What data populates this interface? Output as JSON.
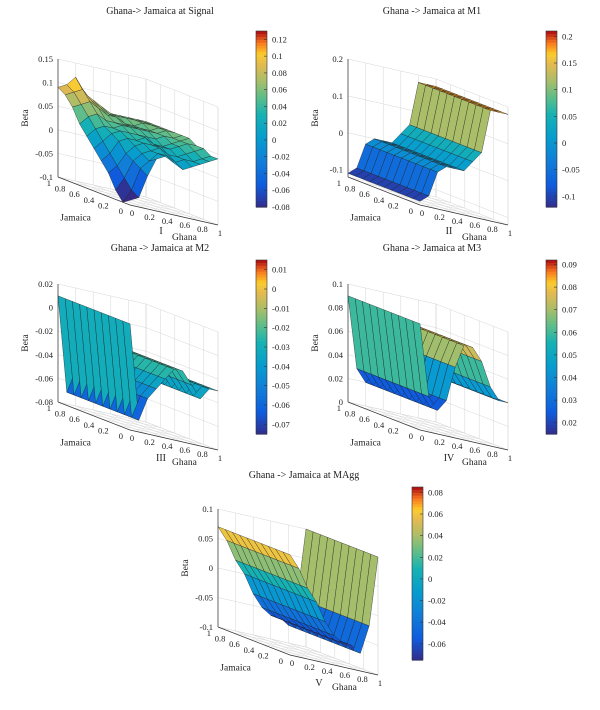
{
  "chart_data": [
    {
      "type": "surface3d",
      "title": "Ghana-> Jamaica at Signal",
      "panel_label": "I",
      "xlabel": "Ghana",
      "ylabel": "Jamaica",
      "zlabel": "Beta",
      "x_ticks": [
        "0",
        "0.2",
        "0.4",
        "0.6",
        "0.8",
        "1"
      ],
      "y_ticks": [
        "0",
        "0.2",
        "0.4",
        "0.6",
        "0.8",
        "1"
      ],
      "z_ticks": [
        "-0.1",
        "-0.05",
        "0",
        "0.05",
        "0.1",
        "0.15"
      ],
      "zlim": [
        -0.1,
        0.15
      ],
      "colorbar_ticks": [
        "0.12",
        "0.1",
        "0.08",
        "0.06",
        "0.04",
        "0.02",
        "0",
        "-0.02",
        "-0.04",
        "-0.06",
        "-0.08"
      ],
      "clim": [
        -0.08,
        0.13
      ],
      "grid": {
        "x": [
          0,
          0.1,
          0.2,
          0.3,
          0.4,
          0.5,
          0.6,
          0.7,
          0.8,
          0.9,
          1
        ],
        "y": [
          0,
          0.1,
          0.2,
          0.3,
          0.4,
          0.5,
          0.6,
          0.7,
          0.8,
          0.9,
          1
        ],
        "z": [
          [
            -0.09,
            -0.08,
            -0.03,
            0.01,
            0.02,
            0.01,
            0.0,
            0.01,
            0.02,
            0.03,
            0.04
          ],
          [
            -0.1,
            -0.07,
            -0.02,
            0.0,
            0.02,
            0.02,
            0.01,
            0.02,
            0.02,
            0.03,
            0.04
          ],
          [
            -0.08,
            -0.05,
            -0.01,
            0.01,
            0.02,
            0.03,
            0.02,
            0.02,
            0.03,
            0.04,
            0.05
          ],
          [
            -0.05,
            -0.03,
            0.0,
            0.02,
            0.03,
            0.03,
            0.03,
            0.03,
            0.04,
            0.05,
            0.05
          ],
          [
            -0.03,
            -0.01,
            0.02,
            0.03,
            0.03,
            0.04,
            0.03,
            0.03,
            0.04,
            0.05,
            0.06
          ],
          [
            -0.01,
            0.01,
            0.03,
            0.04,
            0.04,
            0.04,
            0.04,
            0.04,
            0.05,
            0.05,
            0.06
          ],
          [
            0.01,
            0.03,
            0.04,
            0.04,
            0.05,
            0.05,
            0.05,
            0.05,
            0.05,
            0.06,
            0.06
          ],
          [
            0.03,
            0.05,
            0.06,
            0.05,
            0.05,
            0.05,
            0.05,
            0.05,
            0.05,
            0.06,
            0.06
          ],
          [
            0.06,
            0.07,
            0.08,
            0.07,
            0.06,
            0.06,
            0.05,
            0.05,
            0.06,
            0.06,
            0.06
          ],
          [
            0.08,
            0.09,
            0.1,
            0.08,
            0.07,
            0.06,
            0.06,
            0.06,
            0.06,
            0.06,
            0.06
          ],
          [
            0.09,
            0.1,
            0.12,
            0.09,
            0.08,
            0.07,
            0.06,
            0.06,
            0.06,
            0.06,
            0.06
          ]
        ]
      }
    },
    {
      "type": "surface3d",
      "title": "Ghana -> Jamaica at M1",
      "panel_label": "II",
      "xlabel": "Ghana",
      "ylabel": "Jamaica",
      "zlabel": "Beta",
      "x_ticks": [
        "0",
        "0.2",
        "0.4",
        "0.6",
        "0.8",
        "1"
      ],
      "y_ticks": [
        "0",
        "0.2",
        "0.4",
        "0.6",
        "0.8",
        "1"
      ],
      "z_ticks": [
        "-0.1",
        "0",
        "0.1",
        "0.2"
      ],
      "zlim": [
        -0.12,
        0.2
      ],
      "colorbar_ticks": [
        "0.2",
        "0.15",
        "0.1",
        "0.05",
        "0",
        "-0.05",
        "-0.1"
      ],
      "clim": [
        -0.12,
        0.21
      ],
      "grid": {
        "x": [
          0,
          0.1,
          0.2,
          0.3,
          0.4,
          0.5,
          0.6,
          0.7,
          0.8,
          0.9,
          1
        ],
        "y": [
          0,
          0.1,
          0.2,
          0.3,
          0.4,
          0.5,
          0.6,
          0.7,
          0.8,
          0.9,
          1
        ],
        "z": [
          [
            -0.11,
            -0.09,
            -0.02,
            0.0,
            0.0,
            0.0,
            0.03,
            0.06,
            0.18,
            0.18,
            0.18
          ],
          [
            -0.11,
            -0.09,
            -0.02,
            0.0,
            0.0,
            0.0,
            0.03,
            0.06,
            0.18,
            0.18,
            0.18
          ],
          [
            -0.11,
            -0.09,
            -0.02,
            0.0,
            0.0,
            0.0,
            0.03,
            0.06,
            0.18,
            0.18,
            0.18
          ],
          [
            -0.11,
            -0.09,
            -0.02,
            0.0,
            0.0,
            0.0,
            0.03,
            0.06,
            0.18,
            0.18,
            0.18
          ],
          [
            -0.11,
            -0.09,
            -0.02,
            0.0,
            0.0,
            0.0,
            0.03,
            0.06,
            0.18,
            0.18,
            0.18
          ],
          [
            -0.11,
            -0.09,
            -0.02,
            0.0,
            0.0,
            0.0,
            0.03,
            0.06,
            0.18,
            0.18,
            0.18
          ],
          [
            -0.11,
            -0.09,
            -0.02,
            0.0,
            0.0,
            0.0,
            0.03,
            0.06,
            0.18,
            0.18,
            0.18
          ],
          [
            -0.11,
            -0.09,
            -0.02,
            0.0,
            0.0,
            0.0,
            0.03,
            0.06,
            0.18,
            0.18,
            0.18
          ],
          [
            -0.11,
            -0.09,
            -0.02,
            0.0,
            0.0,
            0.0,
            0.03,
            0.06,
            0.18,
            0.18,
            0.18
          ],
          [
            -0.11,
            -0.09,
            -0.02,
            0.0,
            0.0,
            0.0,
            0.03,
            0.06,
            0.18,
            0.18,
            0.18
          ],
          [
            -0.11,
            -0.09,
            -0.02,
            0.0,
            0.0,
            0.0,
            0.03,
            0.06,
            0.18,
            0.18,
            0.18
          ]
        ]
      }
    },
    {
      "type": "surface3d",
      "title": "Ghana -> Jamaica at M2",
      "panel_label": "III",
      "xlabel": "Ghana",
      "ylabel": "Jamaica",
      "zlabel": "Beta",
      "x_ticks": [
        "0",
        "0.2",
        "0.4",
        "0.6",
        "0.8",
        "1"
      ],
      "y_ticks": [
        "0",
        "0.2",
        "0.4",
        "0.6",
        "0.8",
        "1"
      ],
      "z_ticks": [
        "-0.08",
        "-0.06",
        "-0.04",
        "-0.02",
        "0",
        "0.02"
      ],
      "zlim": [
        -0.08,
        0.02
      ],
      "colorbar_ticks": [
        "0.01",
        "0",
        "-0.01",
        "-0.02",
        "-0.03",
        "-0.04",
        "-0.05",
        "-0.06",
        "-0.07"
      ],
      "clim": [
        -0.075,
        0.015
      ],
      "grid": {
        "x": [
          0,
          0.1,
          0.2,
          0.3,
          0.4,
          0.5,
          0.6,
          0.7,
          0.8,
          0.9,
          1
        ],
        "y": [
          0,
          0.1,
          0.2,
          0.3,
          0.4,
          0.5,
          0.6,
          0.7,
          0.8,
          0.9,
          1
        ],
        "z": [
          [
            0.01,
            -0.07,
            -0.05,
            -0.04,
            -0.03,
            -0.02,
            -0.02,
            -0.03,
            -0.04,
            -0.03,
            -0.03
          ],
          [
            0.01,
            -0.07,
            -0.05,
            -0.04,
            -0.03,
            -0.02,
            -0.02,
            -0.03,
            -0.04,
            -0.03,
            -0.03
          ],
          [
            0.01,
            -0.07,
            -0.05,
            -0.04,
            -0.03,
            -0.02,
            -0.02,
            -0.03,
            -0.04,
            -0.03,
            -0.03
          ],
          [
            0.01,
            -0.07,
            -0.05,
            -0.04,
            -0.03,
            -0.02,
            -0.02,
            -0.03,
            -0.04,
            -0.03,
            -0.03
          ],
          [
            0.01,
            -0.07,
            -0.05,
            -0.04,
            -0.03,
            -0.02,
            -0.02,
            -0.03,
            -0.04,
            -0.03,
            -0.03
          ],
          [
            0.01,
            -0.07,
            -0.05,
            -0.04,
            -0.03,
            -0.02,
            -0.02,
            -0.03,
            -0.04,
            -0.03,
            -0.03
          ],
          [
            0.01,
            -0.07,
            -0.05,
            -0.04,
            -0.03,
            -0.02,
            -0.02,
            -0.03,
            -0.04,
            -0.03,
            -0.03
          ],
          [
            0.01,
            -0.07,
            -0.05,
            -0.04,
            -0.03,
            -0.02,
            -0.02,
            -0.03,
            -0.04,
            -0.03,
            -0.03
          ],
          [
            0.01,
            -0.07,
            -0.05,
            -0.04,
            -0.03,
            -0.02,
            -0.02,
            -0.03,
            -0.04,
            -0.03,
            -0.03
          ],
          [
            0.01,
            -0.07,
            -0.05,
            -0.04,
            -0.03,
            -0.02,
            -0.02,
            -0.03,
            -0.04,
            -0.03,
            -0.03
          ],
          [
            0.01,
            -0.07,
            -0.05,
            -0.04,
            -0.03,
            -0.02,
            -0.02,
            -0.03,
            -0.04,
            -0.03,
            -0.03
          ]
        ]
      }
    },
    {
      "type": "surface3d",
      "title": "Ghana -> Jamaica at M3",
      "panel_label": "IV",
      "xlabel": "Ghana",
      "ylabel": "Jamaica",
      "zlabel": "Beta",
      "x_ticks": [
        "0",
        "0.2",
        "0.4",
        "0.6",
        "0.8",
        "1"
      ],
      "y_ticks": [
        "0",
        "0.2",
        "0.4",
        "0.6",
        "0.8",
        "1"
      ],
      "z_ticks": [
        "0",
        "0.02",
        "0.04",
        "0.06",
        "0.08",
        "0.1"
      ],
      "zlim": [
        0,
        0.1
      ],
      "colorbar_ticks": [
        "0.09",
        "0.08",
        "0.07",
        "0.06",
        "0.05",
        "0.04",
        "0.03",
        "0.02"
      ],
      "clim": [
        0.015,
        0.092
      ],
      "grid": {
        "x": [
          0,
          0.1,
          0.2,
          0.3,
          0.4,
          0.5,
          0.6,
          0.7,
          0.8,
          0.9,
          1
        ],
        "y": [
          0,
          0.1,
          0.2,
          0.3,
          0.4,
          0.5,
          0.6,
          0.7,
          0.8,
          0.9,
          1
        ],
        "z": [
          [
            0.09,
            0.03,
            0.02,
            0.03,
            0.06,
            0.08,
            0.08,
            0.07,
            0.05,
            0.04,
            0.04
          ],
          [
            0.09,
            0.03,
            0.02,
            0.03,
            0.06,
            0.08,
            0.08,
            0.07,
            0.05,
            0.04,
            0.04
          ],
          [
            0.09,
            0.03,
            0.02,
            0.03,
            0.06,
            0.08,
            0.08,
            0.07,
            0.05,
            0.04,
            0.04
          ],
          [
            0.09,
            0.03,
            0.02,
            0.03,
            0.06,
            0.08,
            0.08,
            0.07,
            0.05,
            0.04,
            0.04
          ],
          [
            0.09,
            0.03,
            0.02,
            0.03,
            0.06,
            0.08,
            0.08,
            0.07,
            0.05,
            0.04,
            0.04
          ],
          [
            0.09,
            0.03,
            0.02,
            0.03,
            0.06,
            0.08,
            0.08,
            0.07,
            0.05,
            0.04,
            0.04
          ],
          [
            0.09,
            0.03,
            0.02,
            0.03,
            0.06,
            0.08,
            0.08,
            0.07,
            0.05,
            0.04,
            0.04
          ],
          [
            0.09,
            0.03,
            0.02,
            0.03,
            0.06,
            0.08,
            0.08,
            0.07,
            0.05,
            0.04,
            0.04
          ],
          [
            0.09,
            0.03,
            0.02,
            0.03,
            0.06,
            0.08,
            0.08,
            0.07,
            0.05,
            0.04,
            0.04
          ],
          [
            0.09,
            0.03,
            0.02,
            0.03,
            0.06,
            0.08,
            0.08,
            0.07,
            0.05,
            0.04,
            0.04
          ],
          [
            0.09,
            0.03,
            0.02,
            0.03,
            0.06,
            0.08,
            0.08,
            0.07,
            0.05,
            0.04,
            0.04
          ]
        ]
      }
    },
    {
      "type": "surface3d",
      "title": "Ghana -> Jamaica at MAgg",
      "panel_label": "V",
      "xlabel": "Ghana",
      "ylabel": "Jamaica",
      "zlabel": "Beta",
      "x_ticks": [
        "0",
        "0.2",
        "0.4",
        "0.6",
        "0.8",
        "1"
      ],
      "y_ticks": [
        "0",
        "0.2",
        "0.4",
        "0.6",
        "0.8",
        "1"
      ],
      "z_ticks": [
        "-0.1",
        "-0.05",
        "0",
        "0.05",
        "0.1"
      ],
      "zlim": [
        -0.1,
        0.1
      ],
      "colorbar_ticks": [
        "0.08",
        "0.06",
        "0.04",
        "0.02",
        "0",
        "-0.02",
        "-0.04",
        "-0.06"
      ],
      "clim": [
        -0.075,
        0.085
      ],
      "grid": {
        "x": [
          0,
          0.1,
          0.2,
          0.3,
          0.4,
          0.5,
          0.6,
          0.7,
          0.8,
          0.9,
          1
        ],
        "y": [
          0,
          0.1,
          0.2,
          0.3,
          0.4,
          0.5,
          0.6,
          0.7,
          0.8,
          0.9,
          1
        ],
        "z": [
          [
            0.07,
            0.05,
            0.02,
            0.0,
            -0.03,
            -0.05,
            -0.06,
            -0.06,
            -0.07,
            -0.02,
            0.1
          ],
          [
            0.07,
            0.05,
            0.02,
            0.0,
            -0.03,
            -0.05,
            -0.06,
            -0.06,
            -0.07,
            -0.02,
            0.1
          ],
          [
            0.07,
            0.05,
            0.02,
            0.0,
            -0.03,
            -0.05,
            -0.06,
            -0.06,
            -0.07,
            -0.02,
            0.1
          ],
          [
            0.07,
            0.05,
            0.02,
            0.0,
            -0.03,
            -0.05,
            -0.06,
            -0.06,
            -0.07,
            -0.02,
            0.1
          ],
          [
            0.07,
            0.05,
            0.02,
            0.0,
            -0.03,
            -0.05,
            -0.06,
            -0.06,
            -0.07,
            -0.02,
            0.1
          ],
          [
            0.07,
            0.05,
            0.02,
            0.0,
            -0.03,
            -0.05,
            -0.06,
            -0.06,
            -0.07,
            -0.02,
            0.1
          ],
          [
            0.07,
            0.05,
            0.02,
            0.0,
            -0.03,
            -0.05,
            -0.06,
            -0.06,
            -0.07,
            -0.02,
            0.1
          ],
          [
            0.07,
            0.05,
            0.02,
            0.0,
            -0.03,
            -0.05,
            -0.06,
            -0.06,
            -0.07,
            -0.02,
            0.1
          ],
          [
            0.07,
            0.05,
            0.02,
            0.0,
            -0.03,
            -0.05,
            -0.06,
            -0.06,
            -0.07,
            -0.02,
            0.1
          ],
          [
            0.07,
            0.05,
            0.02,
            0.0,
            -0.03,
            -0.05,
            -0.06,
            -0.06,
            -0.07,
            -0.02,
            0.1
          ],
          [
            0.07,
            0.05,
            0.02,
            0.0,
            -0.03,
            -0.05,
            -0.06,
            -0.06,
            -0.07,
            -0.02,
            0.1
          ]
        ]
      }
    }
  ]
}
